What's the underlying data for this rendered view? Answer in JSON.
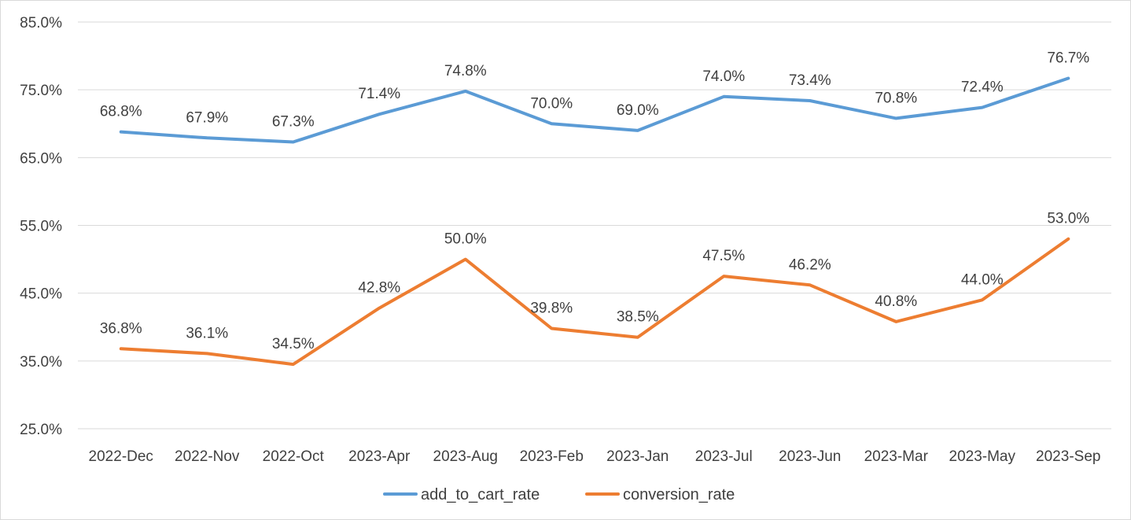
{
  "chart_data": {
    "type": "line",
    "categories": [
      "2022-Dec",
      "2022-Nov",
      "2022-Oct",
      "2023-Apr",
      "2023-Aug",
      "2023-Feb",
      "2023-Jan",
      "2023-Jul",
      "2023-Jun",
      "2023-Mar",
      "2023-May",
      "2023-Sep"
    ],
    "series": [
      {
        "name": "add_to_cart_rate",
        "color": "#5b9bd5",
        "values": [
          68.8,
          67.9,
          67.3,
          71.4,
          74.8,
          70.0,
          69.0,
          74.0,
          73.4,
          70.8,
          72.4,
          76.7
        ],
        "labels": [
          "68.8%",
          "67.9%",
          "67.3%",
          "71.4%",
          "74.8%",
          "70.0%",
          "69.0%",
          "74.0%",
          "73.4%",
          "70.8%",
          "72.4%",
          "76.7%"
        ]
      },
      {
        "name": "conversion_rate",
        "color": "#ed7d31",
        "values": [
          36.8,
          36.1,
          34.5,
          42.8,
          50.0,
          39.8,
          38.5,
          47.5,
          46.2,
          40.8,
          44.0,
          53.0
        ],
        "labels": [
          "36.8%",
          "36.1%",
          "34.5%",
          "42.8%",
          "50.0%",
          "39.8%",
          "38.5%",
          "47.5%",
          "46.2%",
          "40.8%",
          "44.0%",
          "53.0%"
        ]
      }
    ],
    "yticks": [
      25,
      35,
      45,
      55,
      65,
      75,
      85
    ],
    "ytick_labels": [
      "25.0%",
      "35.0%",
      "45.0%",
      "55.0%",
      "65.0%",
      "75.0%",
      "85.0%"
    ],
    "ylim": [
      25,
      85
    ],
    "grid": true,
    "legend_position": "bottom"
  }
}
